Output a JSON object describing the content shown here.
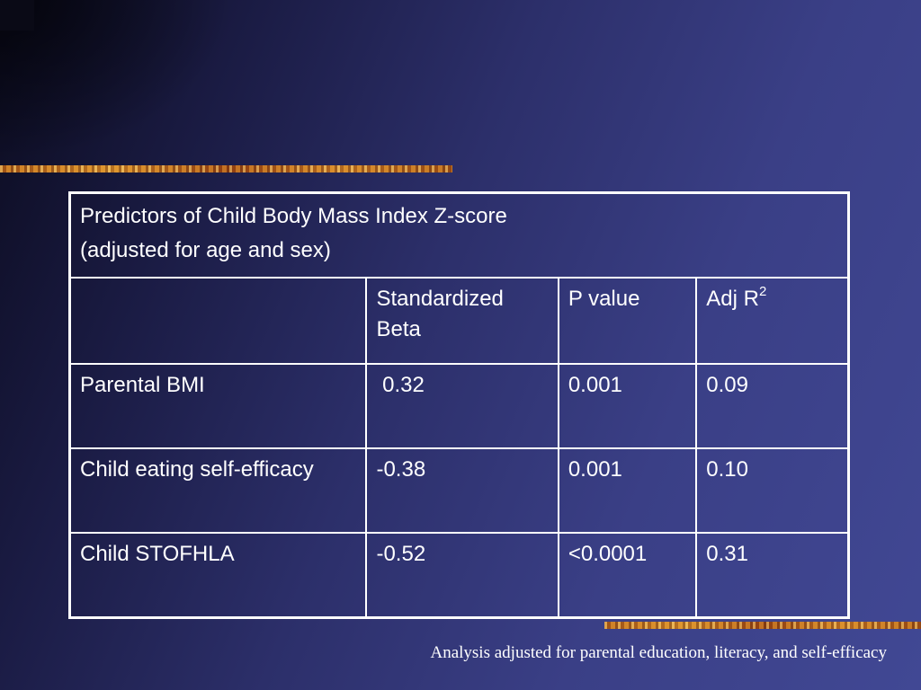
{
  "table": {
    "title_line1": "Predictors of Child Body Mass Index Z-score",
    "title_line2": "(adjusted for age and sex)",
    "headers": {
      "predictor": "",
      "beta_line1": "Standardized",
      "beta_line2": "Beta",
      "p_value": "P value",
      "adj_r": "Adj R",
      "adj_r_sup": "2"
    },
    "rows": [
      {
        "predictor": "Parental BMI",
        "beta": " 0.32",
        "p": "0.001",
        "r2": "0.09"
      },
      {
        "predictor": "Child eating self-efficacy",
        "beta": "-0.38",
        "p": "0.001",
        "r2": "0.10"
      },
      {
        "predictor": "Child STOFHLA",
        "beta": "-0.52",
        "p": "<0.0001",
        "r2": "0.31"
      }
    ]
  },
  "footnote": "Analysis adjusted for parental education, literacy, and self-efficacy",
  "colors": {
    "background_dark": "#0b0b1e",
    "background_light": "#414894",
    "accent_stripe": "#d9992e",
    "text": "#ffffff"
  }
}
